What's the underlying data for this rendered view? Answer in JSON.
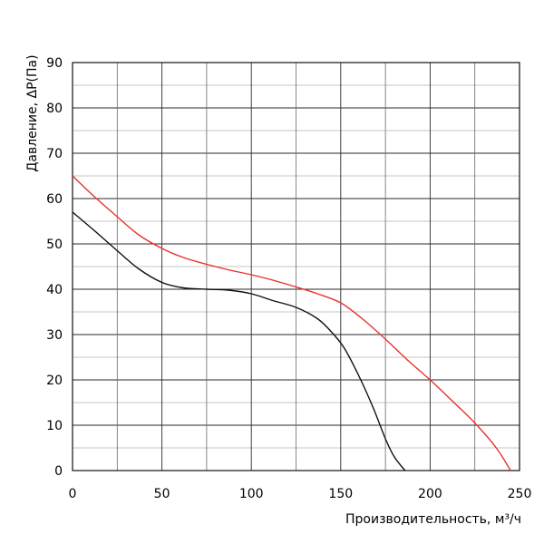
{
  "chart_data": {
    "type": "line",
    "xlabel": "Производительность, м³/ч",
    "ylabel": "Давление, ΔP(Па)",
    "xlim": [
      0,
      250
    ],
    "ylim": [
      0,
      90
    ],
    "x_ticks": [
      "0",
      "50",
      "100",
      "150",
      "200",
      "250"
    ],
    "y_ticks": [
      "0",
      "10",
      "20",
      "30",
      "40",
      "50",
      "60",
      "70",
      "80",
      "90"
    ],
    "grid": true,
    "series": [
      {
        "color": "#e8312c",
        "x": [
          0,
          12,
          25,
          37,
          50,
          62,
          75,
          87,
          100,
          112,
          125,
          137,
          150,
          162,
          175,
          187,
          200,
          212,
          225,
          237,
          245
        ],
        "y": [
          65,
          60.5,
          56,
          52,
          49,
          47,
          45.5,
          44.3,
          43.2,
          42,
          40.5,
          39,
          37,
          33.5,
          29,
          24.5,
          20,
          15.5,
          10.5,
          5,
          0
        ]
      },
      {
        "color": "#111111",
        "x": [
          0,
          12,
          25,
          37,
          50,
          62,
          75,
          87,
          100,
          112,
          125,
          137,
          145,
          152,
          160,
          168,
          175,
          180,
          186
        ],
        "y": [
          57,
          53,
          48.5,
          44.5,
          41.5,
          40.3,
          40,
          39.8,
          39,
          37.5,
          36,
          33.5,
          30.5,
          27,
          21,
          14,
          7,
          3,
          0
        ]
      }
    ]
  }
}
